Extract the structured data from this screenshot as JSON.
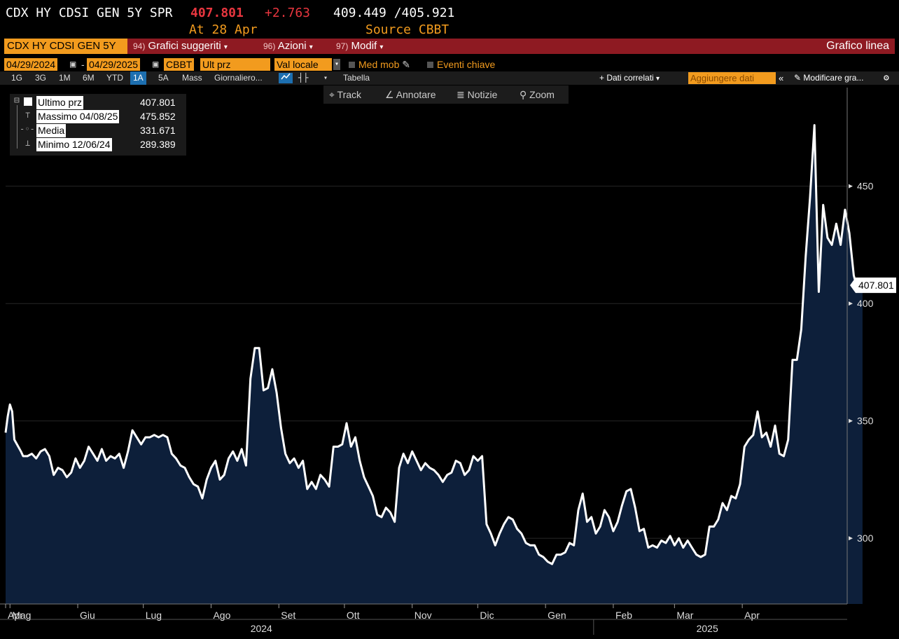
{
  "header": {
    "ticker": "CDX HY CDSI GEN 5Y SPR",
    "last_price": "407.801",
    "change": "+2.763",
    "high_low": "409.449 /405.921",
    "at_label": "At 28 Apr",
    "source_label": "Source CBBT"
  },
  "menubar": {
    "security": "CDX HY CDSI GEN 5Y",
    "items": [
      {
        "num": "94)",
        "label": "Grafici suggeriti"
      },
      {
        "num": "96)",
        "label": "Azioni"
      },
      {
        "num": "97)",
        "label": "Modif"
      }
    ],
    "chart_type": "Grafico linea"
  },
  "controls": {
    "date_from": "04/29/2024",
    "date_sep": "-",
    "date_to": "04/29/2025",
    "source": "CBBT",
    "field": "Ult prz",
    "currency": "Val locale",
    "moving_avg": "Med mob",
    "key_events": "Eventi chiave"
  },
  "ranges": {
    "items": [
      "1G",
      "3G",
      "1M",
      "6M",
      "YTD",
      "1A",
      "5A",
      "Mass"
    ],
    "selected": "1A",
    "period": "Giornaliero...",
    "table": "Tabella",
    "related": "+ Dati correlati",
    "add_data": "Aggiungere dati",
    "modify": "Modificare gra...",
    "collapse": "«"
  },
  "tools": {
    "track": "Track",
    "annotate": "Annotare",
    "news": "Notizie",
    "zoom": "Zoom"
  },
  "legend": {
    "last_label": "Ultimo prz",
    "last_value": "407.801",
    "max_label": "Massimo 04/08/25",
    "max_value": "475.852",
    "avg_label": "Media",
    "avg_value": "331.671",
    "min_label": "Minimo 12/06/24",
    "min_value": "289.389"
  },
  "colors": {
    "orange": "#f29b1e",
    "menu_red": "#8e1a22",
    "price_red": "#e8363f",
    "area_fill": "#0d1f3a",
    "line": "#ffffff"
  },
  "chart_data": {
    "type": "area",
    "ylim": [
      272,
      492
    ],
    "yticks": [
      300,
      350,
      400,
      450
    ],
    "xlim": [
      "2024-04-29",
      "2025-05-19"
    ],
    "month_ticks": [
      {
        "label": "Apr",
        "date": "2024-04-29"
      },
      {
        "label": "Mag",
        "date": "2024-05-01"
      },
      {
        "label": "Giu",
        "date": "2024-06-01"
      },
      {
        "label": "Lug",
        "date": "2024-07-01"
      },
      {
        "label": "Ago",
        "date": "2024-08-01"
      },
      {
        "label": "Set",
        "date": "2024-09-01"
      },
      {
        "label": "Ott",
        "date": "2024-10-01"
      },
      {
        "label": "Nov",
        "date": "2024-11-01"
      },
      {
        "label": "Dic",
        "date": "2024-12-01"
      },
      {
        "label": "Gen",
        "date": "2025-01-01"
      },
      {
        "label": "Feb",
        "date": "2025-02-01"
      },
      {
        "label": "Mar",
        "date": "2025-03-01"
      },
      {
        "label": "Apr",
        "date": "2025-04-01"
      }
    ],
    "year_labels": [
      {
        "label": "2024",
        "date": "2024-08-24"
      },
      {
        "label": "2025",
        "date": "2025-03-16"
      }
    ],
    "year_divider": "2025-01-23",
    "last_value_label": "407.801",
    "series": [
      {
        "points": [
          [
            "2024-04-29",
            345
          ],
          [
            "2024-04-30",
            352
          ],
          [
            "2024-05-01",
            357
          ],
          [
            "2024-05-02",
            354
          ],
          [
            "2024-05-03",
            342
          ],
          [
            "2024-05-06",
            337
          ],
          [
            "2024-05-07",
            335
          ],
          [
            "2024-05-09",
            335
          ],
          [
            "2024-05-11",
            336
          ],
          [
            "2024-05-13",
            334
          ],
          [
            "2024-05-15",
            337
          ],
          [
            "2024-05-17",
            338
          ],
          [
            "2024-05-19",
            335
          ],
          [
            "2024-05-21",
            327
          ],
          [
            "2024-05-23",
            330
          ],
          [
            "2024-05-25",
            329
          ],
          [
            "2024-05-27",
            326
          ],
          [
            "2024-05-29",
            328
          ],
          [
            "2024-05-31",
            334
          ],
          [
            "2024-06-02",
            330
          ],
          [
            "2024-06-04",
            333
          ],
          [
            "2024-06-06",
            339
          ],
          [
            "2024-06-08",
            336
          ],
          [
            "2024-06-10",
            333
          ],
          [
            "2024-06-12",
            338
          ],
          [
            "2024-06-14",
            333
          ],
          [
            "2024-06-16",
            335
          ],
          [
            "2024-06-18",
            334
          ],
          [
            "2024-06-20",
            336
          ],
          [
            "2024-06-22",
            330
          ],
          [
            "2024-06-24",
            337
          ],
          [
            "2024-06-26",
            346
          ],
          [
            "2024-06-28",
            343
          ],
          [
            "2024-06-30",
            340
          ],
          [
            "2024-07-02",
            343
          ],
          [
            "2024-07-04",
            343
          ],
          [
            "2024-07-06",
            344
          ],
          [
            "2024-07-08",
            343
          ],
          [
            "2024-07-10",
            344
          ],
          [
            "2024-07-12",
            343
          ],
          [
            "2024-07-14",
            336
          ],
          [
            "2024-07-16",
            334
          ],
          [
            "2024-07-18",
            331
          ],
          [
            "2024-07-20",
            330
          ],
          [
            "2024-07-22",
            326
          ],
          [
            "2024-07-24",
            323
          ],
          [
            "2024-07-26",
            322
          ],
          [
            "2024-07-28",
            317
          ],
          [
            "2024-07-30",
            325
          ],
          [
            "2024-08-01",
            330
          ],
          [
            "2024-08-03",
            333
          ],
          [
            "2024-08-05",
            325
          ],
          [
            "2024-08-07",
            327
          ],
          [
            "2024-08-09",
            334
          ],
          [
            "2024-08-11",
            337
          ],
          [
            "2024-08-13",
            333
          ],
          [
            "2024-08-15",
            338
          ],
          [
            "2024-08-17",
            331
          ],
          [
            "2024-08-19",
            368
          ],
          [
            "2024-08-21",
            381
          ],
          [
            "2024-08-23",
            381
          ],
          [
            "2024-08-25",
            363
          ],
          [
            "2024-08-27",
            364
          ],
          [
            "2024-08-29",
            372
          ],
          [
            "2024-08-31",
            362
          ],
          [
            "2024-09-02",
            347
          ],
          [
            "2024-09-04",
            336
          ],
          [
            "2024-09-06",
            332
          ],
          [
            "2024-09-08",
            334
          ],
          [
            "2024-09-10",
            330
          ],
          [
            "2024-09-12",
            333
          ],
          [
            "2024-09-14",
            321
          ],
          [
            "2024-09-16",
            324
          ],
          [
            "2024-09-18",
            321
          ],
          [
            "2024-09-20",
            327
          ],
          [
            "2024-09-22",
            325
          ],
          [
            "2024-09-24",
            322
          ],
          [
            "2024-09-26",
            339
          ],
          [
            "2024-09-28",
            339
          ],
          [
            "2024-09-30",
            340
          ],
          [
            "2024-10-02",
            349
          ],
          [
            "2024-10-04",
            339
          ],
          [
            "2024-10-06",
            343
          ],
          [
            "2024-10-08",
            333
          ],
          [
            "2024-10-10",
            326
          ],
          [
            "2024-10-12",
            322
          ],
          [
            "2024-10-14",
            318
          ],
          [
            "2024-10-16",
            310
          ],
          [
            "2024-10-18",
            309
          ],
          [
            "2024-10-20",
            313
          ],
          [
            "2024-10-22",
            311
          ],
          [
            "2024-10-24",
            307
          ],
          [
            "2024-10-26",
            330
          ],
          [
            "2024-10-28",
            336
          ],
          [
            "2024-10-30",
            332
          ],
          [
            "2024-11-01",
            337
          ],
          [
            "2024-11-03",
            333
          ],
          [
            "2024-11-05",
            329
          ],
          [
            "2024-11-07",
            332
          ],
          [
            "2024-11-09",
            330
          ],
          [
            "2024-11-11",
            329
          ],
          [
            "2024-11-13",
            327
          ],
          [
            "2024-11-15",
            324
          ],
          [
            "2024-11-17",
            327
          ],
          [
            "2024-11-19",
            328
          ],
          [
            "2024-11-21",
            333
          ],
          [
            "2024-11-23",
            332
          ],
          [
            "2024-11-25",
            327
          ],
          [
            "2024-11-27",
            329
          ],
          [
            "2024-11-29",
            335
          ],
          [
            "2024-12-01",
            333
          ],
          [
            "2024-12-03",
            335
          ],
          [
            "2024-12-05",
            306
          ],
          [
            "2024-12-07",
            302
          ],
          [
            "2024-12-09",
            297
          ],
          [
            "2024-12-11",
            302
          ],
          [
            "2024-12-13",
            306
          ],
          [
            "2024-12-15",
            309
          ],
          [
            "2024-12-17",
            308
          ],
          [
            "2024-12-19",
            304
          ],
          [
            "2024-12-21",
            302
          ],
          [
            "2024-12-23",
            298
          ],
          [
            "2024-12-25",
            297
          ],
          [
            "2024-12-27",
            297
          ],
          [
            "2024-12-29",
            293
          ],
          [
            "2024-12-31",
            292
          ],
          [
            "2025-01-02",
            290
          ],
          [
            "2025-01-04",
            289
          ],
          [
            "2025-01-06",
            293
          ],
          [
            "2025-01-08",
            293
          ],
          [
            "2025-01-10",
            294
          ],
          [
            "2025-01-12",
            298
          ],
          [
            "2025-01-14",
            297
          ],
          [
            "2025-01-16",
            312
          ],
          [
            "2025-01-18",
            319
          ],
          [
            "2025-01-20",
            307
          ],
          [
            "2025-01-22",
            309
          ],
          [
            "2025-01-24",
            302
          ],
          [
            "2025-01-26",
            305
          ],
          [
            "2025-01-28",
            312
          ],
          [
            "2025-01-30",
            309
          ],
          [
            "2025-02-01",
            303
          ],
          [
            "2025-02-03",
            307
          ],
          [
            "2025-02-05",
            314
          ],
          [
            "2025-02-07",
            320
          ],
          [
            "2025-02-09",
            321
          ],
          [
            "2025-02-11",
            313
          ],
          [
            "2025-02-13",
            303
          ],
          [
            "2025-02-15",
            304
          ],
          [
            "2025-02-17",
            296
          ],
          [
            "2025-02-19",
            297
          ],
          [
            "2025-02-21",
            296
          ],
          [
            "2025-02-23",
            299
          ],
          [
            "2025-02-25",
            298
          ],
          [
            "2025-02-27",
            301
          ],
          [
            "2025-03-01",
            297
          ],
          [
            "2025-03-03",
            300
          ],
          [
            "2025-03-05",
            296
          ],
          [
            "2025-03-07",
            299
          ],
          [
            "2025-03-09",
            296
          ],
          [
            "2025-03-11",
            293
          ],
          [
            "2025-03-13",
            292
          ],
          [
            "2025-03-15",
            293
          ],
          [
            "2025-03-17",
            305
          ],
          [
            "2025-03-19",
            305
          ],
          [
            "2025-03-21",
            308
          ],
          [
            "2025-03-23",
            315
          ],
          [
            "2025-03-25",
            312
          ],
          [
            "2025-03-27",
            318
          ],
          [
            "2025-03-29",
            317
          ],
          [
            "2025-03-31",
            323
          ],
          [
            "2025-04-02",
            339
          ],
          [
            "2025-04-04",
            342
          ],
          [
            "2025-04-06",
            344
          ],
          [
            "2025-04-08",
            354
          ],
          [
            "2025-04-10",
            343
          ],
          [
            "2025-04-12",
            345
          ],
          [
            "2025-04-14",
            339
          ],
          [
            "2025-04-16",
            348
          ],
          [
            "2025-04-18",
            336
          ],
          [
            "2025-04-20",
            335
          ],
          [
            "2025-04-22",
            342
          ],
          [
            "2025-04-24",
            376
          ],
          [
            "2025-04-26",
            376
          ],
          [
            "2025-04-28",
            389
          ],
          [
            "2025-04-30",
            420
          ],
          [
            "2025-05-02",
            445
          ],
          [
            "2025-05-04",
            476
          ],
          [
            "2025-05-06",
            405
          ],
          [
            "2025-05-08",
            442
          ],
          [
            "2025-05-10",
            428
          ],
          [
            "2025-05-12",
            425
          ],
          [
            "2025-05-14",
            434
          ],
          [
            "2025-05-16",
            425
          ],
          [
            "2025-05-18",
            440
          ],
          [
            "2025-05-20",
            430
          ],
          [
            "2025-05-22",
            412
          ],
          [
            "2025-05-24",
            405
          ],
          [
            "2025-05-26",
            408
          ]
        ]
      }
    ]
  }
}
